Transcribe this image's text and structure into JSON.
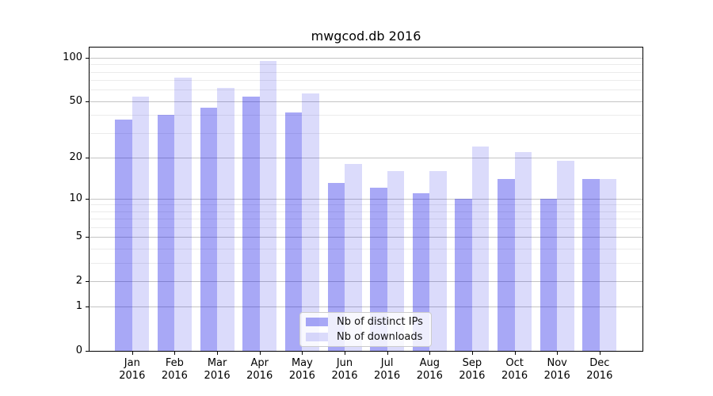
{
  "chart_data": {
    "type": "bar",
    "title": "mwgcod.db 2016",
    "yscale": "log1p",
    "grid": true,
    "legend_position": "lower center",
    "categories": [
      "Jan 2016",
      "Feb 2016",
      "Mar 2016",
      "Apr 2016",
      "May 2016",
      "Jun 2016",
      "Jul 2016",
      "Aug 2016",
      "Sep 2016",
      "Oct 2016",
      "Nov 2016",
      "Dec 2016"
    ],
    "series": [
      {
        "name": "Nb of distinct IPs",
        "slug": "distinct-ips",
        "color": "rgba(13,13,230,0.36)",
        "color_hex": "#a8a8f4",
        "values": [
          37,
          40,
          45,
          54,
          42,
          13,
          12,
          11,
          10,
          14,
          10,
          14
        ]
      },
      {
        "name": "Nb of downloads",
        "slug": "downloads",
        "color": "rgba(13,13,230,0.15)",
        "color_hex": "#d9d9f8",
        "values": [
          54,
          73,
          62,
          95,
          57,
          18,
          16,
          16,
          24,
          22,
          19,
          14
        ]
      }
    ],
    "y_major_ticks": [
      0,
      1,
      2,
      5,
      10,
      20,
      50,
      100
    ],
    "y_minor_gridlines": [
      3,
      4,
      6,
      7,
      8,
      9,
      30,
      40,
      60,
      70,
      80,
      90
    ],
    "ylim": [
      0,
      118
    ],
    "colors": {
      "major_grid": "#c4c4c4",
      "minor_grid": "#ebebeb",
      "spine": "#000000",
      "legend_border": "#cccccc",
      "legend_background": "rgba(255,255,255,0.8)"
    }
  }
}
